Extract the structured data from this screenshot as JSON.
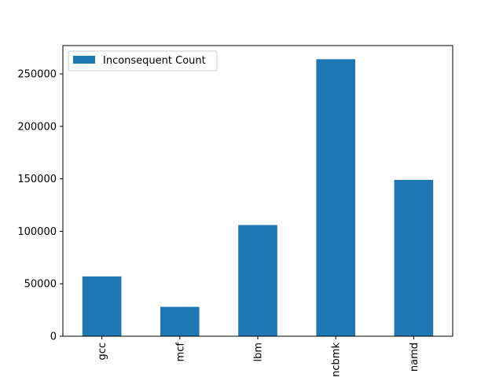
{
  "chart_data": {
    "type": "bar",
    "title": "",
    "xlabel": "",
    "ylabel": "",
    "categories": [
      "gcc",
      "mcf",
      "lbm",
      "xalancbmk",
      "namd"
    ],
    "series": [
      {
        "name": "Inconsequent Count",
        "values": [
          57000,
          28000,
          106000,
          264000,
          149000
        ],
        "color": "#1f77b4"
      }
    ],
    "ylim": [
      0,
      277000
    ],
    "yticks": [
      0,
      50000,
      100000,
      150000,
      200000,
      250000
    ],
    "ytick_labels": [
      "0",
      "50000",
      "100000",
      "150000",
      "200000",
      "250000"
    ],
    "legend": {
      "position": "top-left",
      "label": "Inconsequent Count"
    },
    "grid": false
  }
}
